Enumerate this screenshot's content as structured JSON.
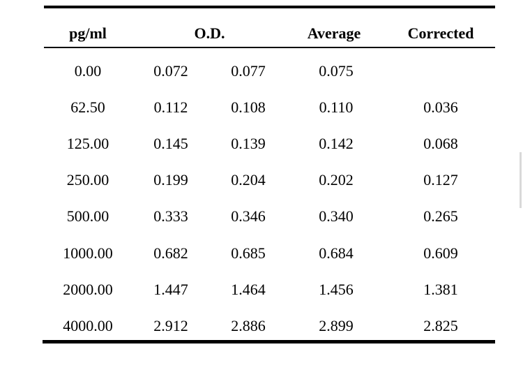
{
  "headers": {
    "col1": "pg/ml",
    "col2": "O.D.",
    "col3": "Average",
    "col4": "Corrected"
  },
  "rows": [
    {
      "conc": "0.00",
      "od1": "0.072",
      "od2": "0.077",
      "avg": "0.075",
      "corr": ""
    },
    {
      "conc": "62.50",
      "od1": "0.112",
      "od2": "0.108",
      "avg": "0.110",
      "corr": "0.036"
    },
    {
      "conc": "125.00",
      "od1": "0.145",
      "od2": "0.139",
      "avg": "0.142",
      "corr": "0.068"
    },
    {
      "conc": "250.00",
      "od1": "0.199",
      "od2": "0.204",
      "avg": "0.202",
      "corr": "0.127"
    },
    {
      "conc": "500.00",
      "od1": "0.333",
      "od2": "0.346",
      "avg": "0.340",
      "corr": "0.265"
    },
    {
      "conc": "1000.00",
      "od1": "0.682",
      "od2": "0.685",
      "avg": "0.684",
      "corr": "0.609"
    },
    {
      "conc": "2000.00",
      "od1": "1.447",
      "od2": "1.464",
      "avg": "1.456",
      "corr": "1.381"
    },
    {
      "conc": "4000.00",
      "od1": "2.912",
      "od2": "2.886",
      "avg": "2.899",
      "corr": "2.825"
    }
  ]
}
